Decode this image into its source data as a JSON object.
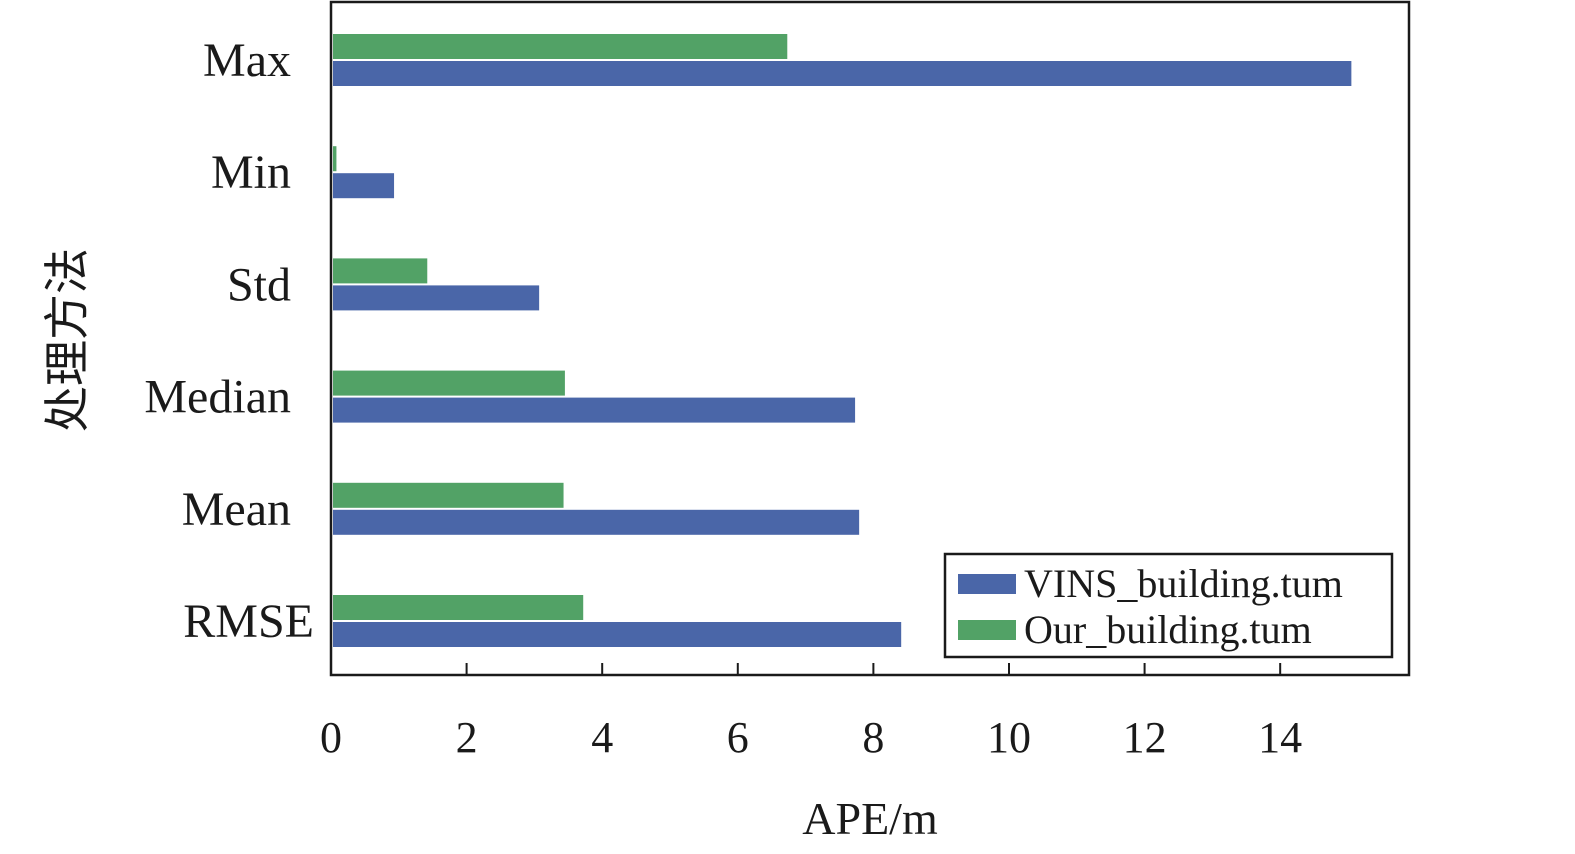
{
  "chart_data": {
    "type": "bar",
    "orientation": "horizontal",
    "categories": [
      "Max",
      "Min",
      "Std",
      "Median",
      "Mean",
      "RMSE"
    ],
    "series": [
      {
        "name": "VINS_building.tum",
        "color": "#4a66a8",
        "values": [
          15.05,
          0.93,
          3.07,
          7.73,
          7.79,
          8.41
        ]
      },
      {
        "name": "Our_building.tum",
        "color": "#52a266",
        "values": [
          6.73,
          0.08,
          1.42,
          3.45,
          3.43,
          3.72
        ]
      }
    ],
    "xlabel": "APE/m",
    "ylabel": "处理方法",
    "xlim": [
      0,
      15.9
    ],
    "xticks": [
      0,
      2,
      4,
      6,
      8,
      10,
      12,
      14
    ],
    "grid": false,
    "legend_position": "bottom-right"
  }
}
